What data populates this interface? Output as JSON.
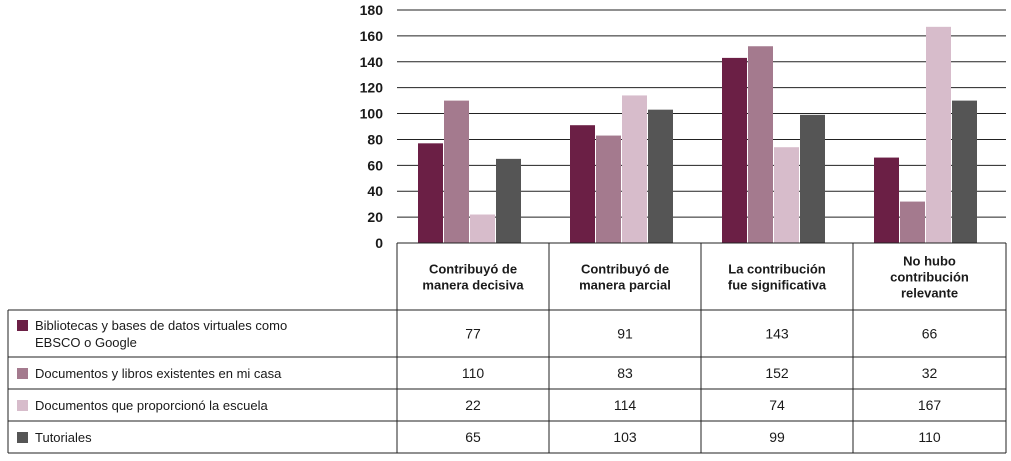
{
  "chart_data": {
    "type": "bar",
    "title": "",
    "xlabel": "",
    "ylabel": "",
    "ylim": [
      0,
      180
    ],
    "yticks": [
      0,
      20,
      40,
      60,
      80,
      100,
      120,
      140,
      160,
      180
    ],
    "grid": true,
    "legend_position": "table-left",
    "categories": [
      [
        "Contribuyó de",
        "manera decisiva"
      ],
      [
        "Contribuyó de",
        "manera parcial"
      ],
      [
        "La contribución",
        "fue significativa"
      ],
      [
        "No hubo",
        "contribución",
        "relevante"
      ]
    ],
    "series": [
      {
        "name": [
          "Bibliotecas y bases de datos virtuales como",
          "EBSCO o Google"
        ],
        "color": "#6b1f45",
        "values": [
          77,
          91,
          143,
          66
        ]
      },
      {
        "name": [
          "Documentos y libros existentes en mi casa"
        ],
        "color": "#a47a8e",
        "values": [
          110,
          83,
          152,
          32
        ]
      },
      {
        "name": [
          "Documentos que proporcionó la escuela"
        ],
        "color": "#d7bccb",
        "values": [
          22,
          114,
          74,
          167
        ]
      },
      {
        "name": [
          "Tutoriales"
        ],
        "color": "#555555",
        "values": [
          65,
          103,
          99,
          110
        ]
      }
    ]
  }
}
